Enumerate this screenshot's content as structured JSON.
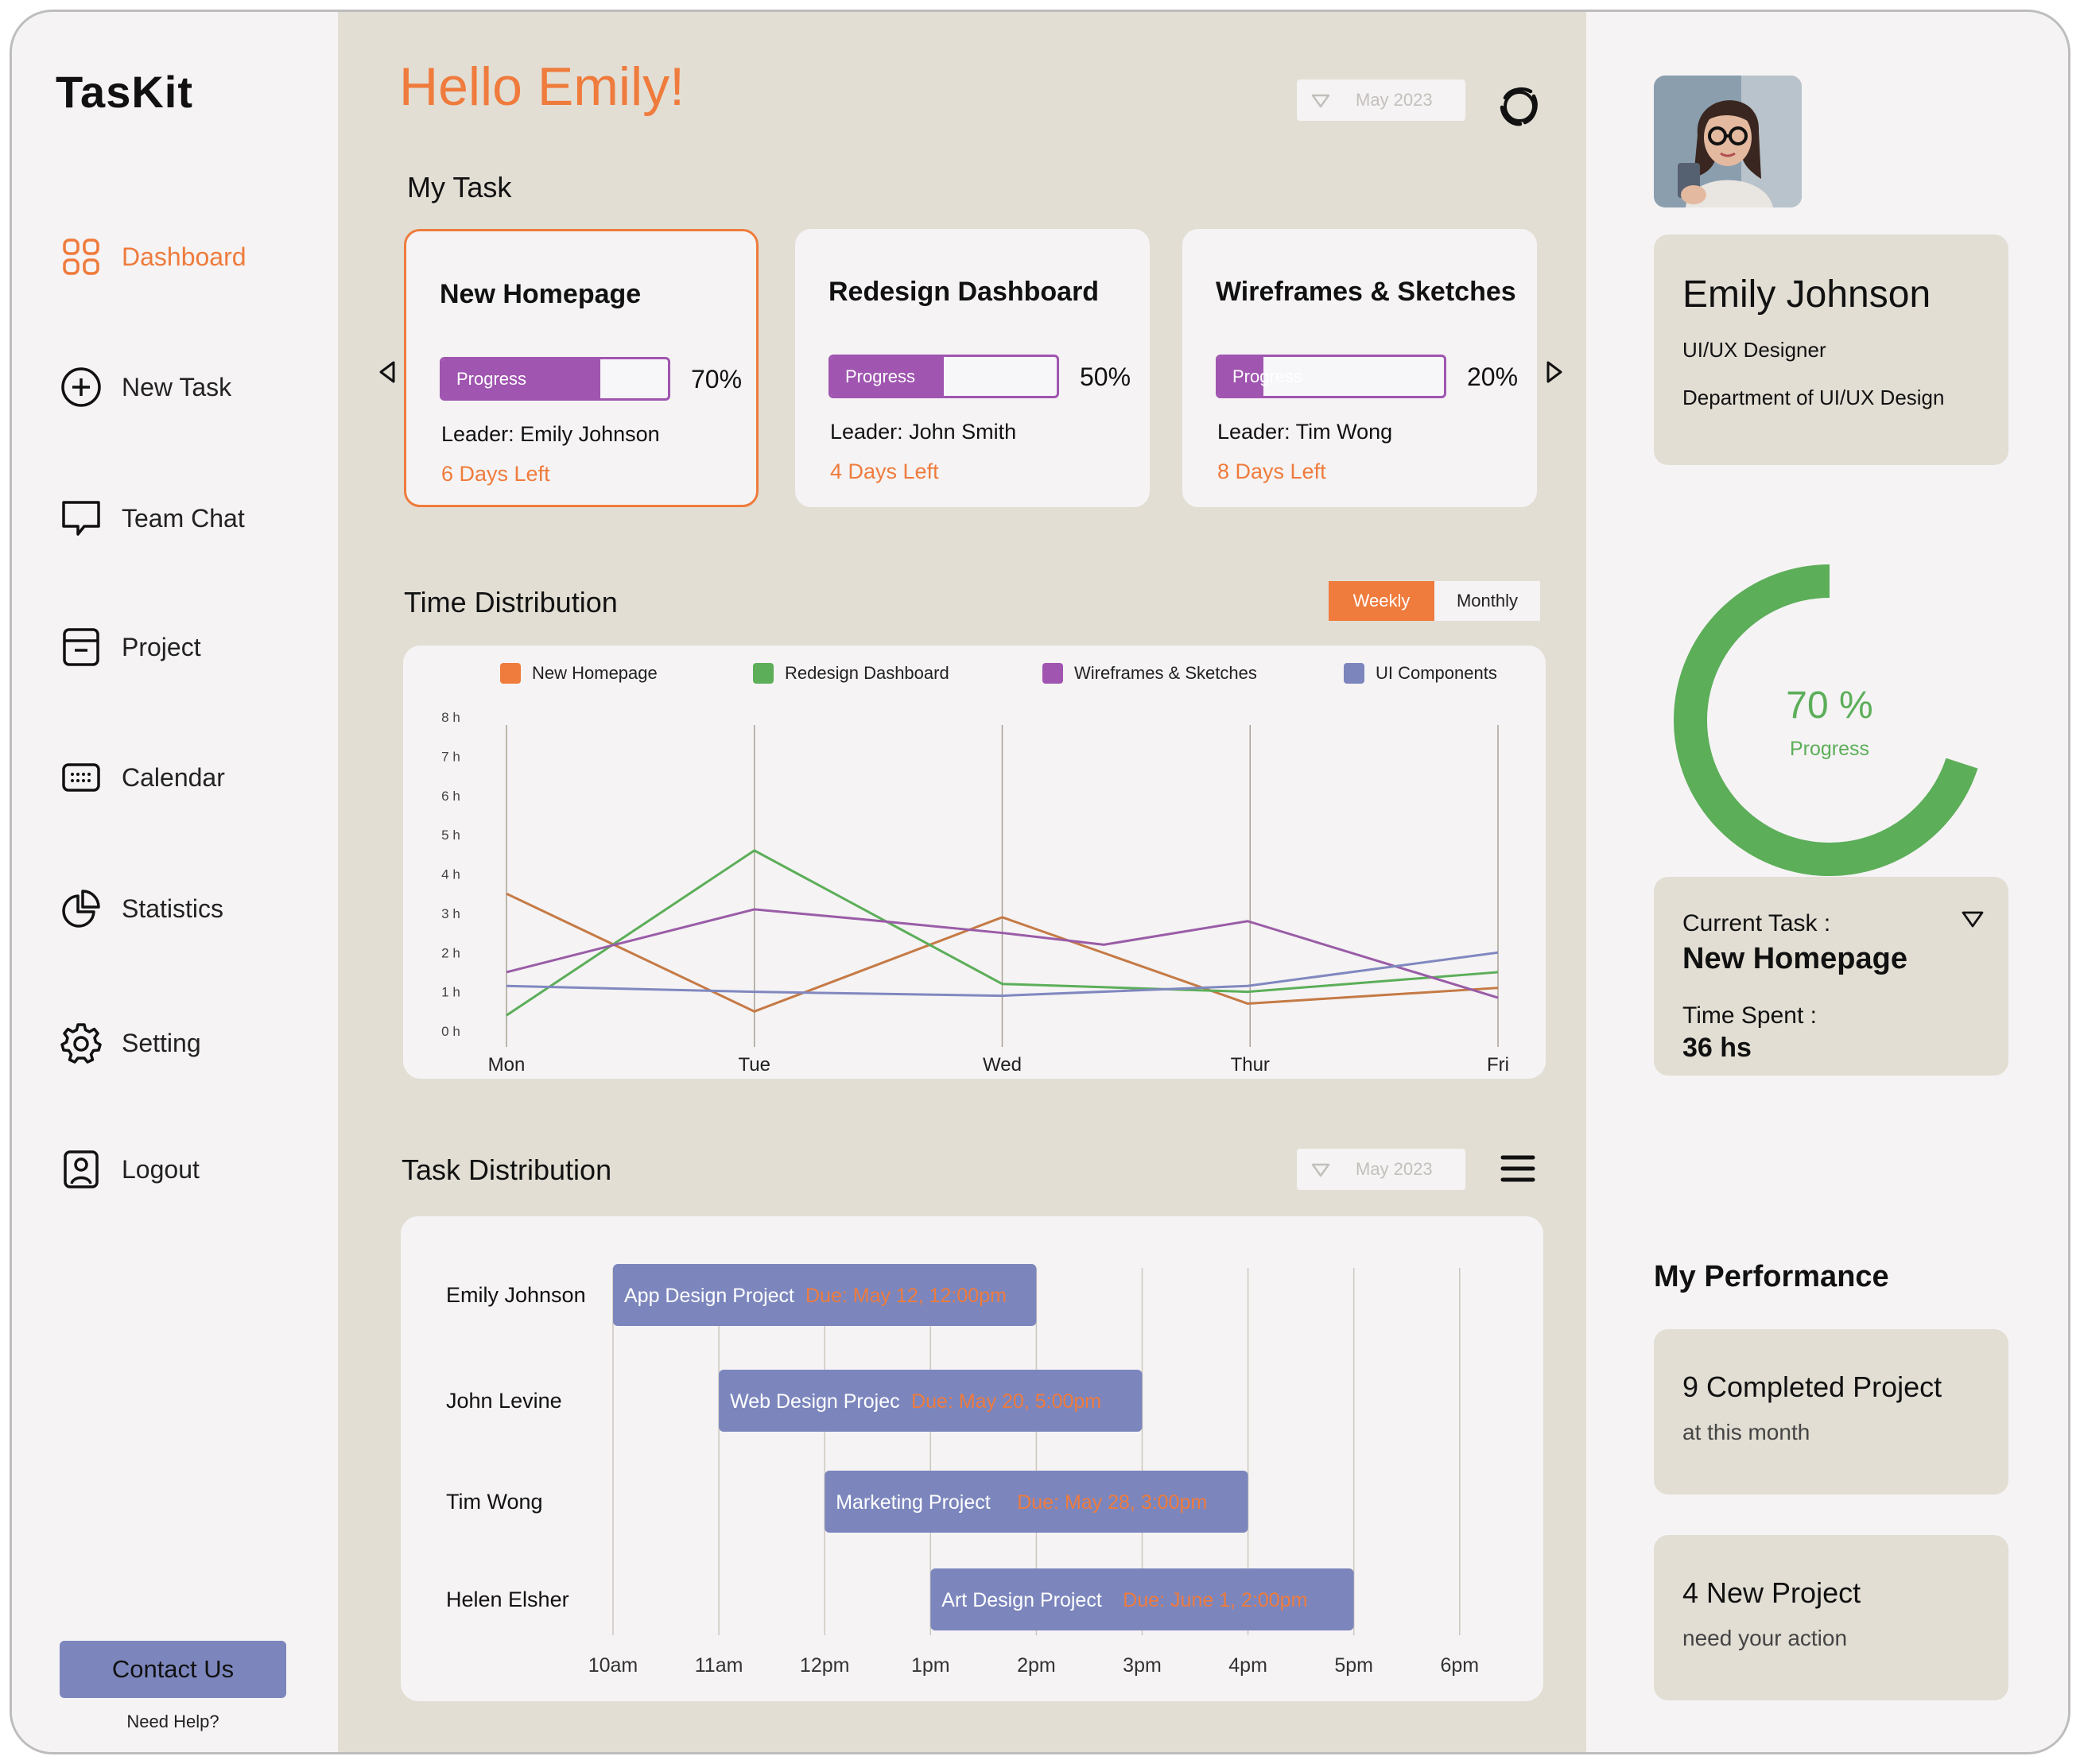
{
  "app": {
    "name": "TasKit"
  },
  "sidebar": {
    "items": [
      {
        "label": "Dashboard",
        "icon": "dashboard-grid-icon",
        "active": true
      },
      {
        "label": "New Task",
        "icon": "plus-circle-icon"
      },
      {
        "label": "Team Chat",
        "icon": "chat-bubble-icon"
      },
      {
        "label": "Project",
        "icon": "archive-box-icon"
      },
      {
        "label": "Calendar",
        "icon": "calendar-keyboard-icon"
      },
      {
        "label": "Statistics",
        "icon": "pie-chart-icon"
      },
      {
        "label": "Setting",
        "icon": "gear-icon"
      },
      {
        "label": "Logout",
        "icon": "user-badge-icon"
      }
    ],
    "contact_label": "Contact Us",
    "help_label": "Need Help?"
  },
  "header": {
    "greeting": "Hello Emily!",
    "date_filter": "May 2023"
  },
  "my_task": {
    "title": "My Task",
    "cards": [
      {
        "title": "New Homepage",
        "bar_label": "Progress",
        "progress": 0.7,
        "percent_text": "70%",
        "leader": "Leader: Emily Johnson",
        "days_left": "6 Days Left"
      },
      {
        "title": "Redesign Dashboard",
        "bar_label": "Progress",
        "progress": 0.5,
        "percent_text": "50%",
        "leader": "Leader: John Smith",
        "days_left": "4 Days Left"
      },
      {
        "title": "Wireframes & Sketches",
        "bar_label": "Progress",
        "progress": 0.2,
        "percent_text": "20%",
        "leader": "Leader: Tim Wong",
        "days_left": "8 Days Left"
      }
    ]
  },
  "time_distribution": {
    "title": "Time Distribution",
    "toggle": {
      "weekly": "Weekly",
      "monthly": "Monthly",
      "selected": "weekly"
    }
  },
  "task_distribution": {
    "title": "Task Distribution",
    "date_filter": "May 2023",
    "people": [
      "Emily Johnson",
      "John Levine",
      "Tim Wong",
      "Helen Elsher"
    ],
    "hours": [
      "10am",
      "11am",
      "12pm",
      "1pm",
      "2pm",
      "3pm",
      "4pm",
      "5pm",
      "6pm"
    ],
    "tasks": [
      {
        "row": 0,
        "name": "App Design Project",
        "due": "Due: May 12, 12:00pm",
        "start": 10,
        "end": 14
      },
      {
        "row": 1,
        "name": "Web Design Projec",
        "due": "Due: May 20, 5:00pm",
        "start": 11,
        "end": 15
      },
      {
        "row": 2,
        "name": "Marketing Project",
        "due": "Due: May 28, 3:00pm",
        "start": 12,
        "end": 16
      },
      {
        "row": 3,
        "name": "Art Design Project",
        "due": "Due: June 1, 2:00pm",
        "start": 13,
        "end": 17
      }
    ],
    "bar_color": "#7c86bd",
    "due_color": "#ef7b3c"
  },
  "profile": {
    "name": "Emily Johnson",
    "role": "UI/UX Designer",
    "department": "Department of UI/UX Design",
    "progress": 0.7,
    "progress_text": "70 %",
    "progress_label": "Progress",
    "current_task_label": "Current Task :",
    "current_task": "New Homepage",
    "time_spent_label": "Time Spent :",
    "time_spent": "36 hs"
  },
  "performance": {
    "title": "My Performance",
    "cards": [
      {
        "main": "9 Completed Project",
        "sub": "at this month"
      },
      {
        "main": "4 New Project",
        "sub": "need your action"
      }
    ]
  },
  "colors": {
    "accent": "#ef7b3c",
    "purple": "#a055b0",
    "green": "#5cae59",
    "blue": "#7c86bd",
    "beige": "#e2ded4"
  },
  "chart_data": {
    "type": "line",
    "title": "Time Distribution",
    "x": [
      "Mon",
      "Tue",
      "Wed",
      "Thur",
      "Fri"
    ],
    "y_ticks": [
      "0 h",
      "1 h",
      "2 h",
      "3 h",
      "4 h",
      "5 h",
      "6 h",
      "7 h",
      "8 h"
    ],
    "ylim": [
      0,
      8
    ],
    "legend_position": "top",
    "grid": "vertical",
    "series": [
      {
        "name": "New Homepage",
        "color": "#ef7b3c",
        "stroke": "#c57a45",
        "points": [
          [
            0,
            3.5
          ],
          [
            1,
            0.5
          ],
          [
            2,
            2.9
          ],
          [
            2.99,
            0.7
          ],
          [
            4,
            1.1
          ]
        ]
      },
      {
        "name": "Redesign Dashboard",
        "color": "#5cae59",
        "stroke": "#5cae59",
        "points": [
          [
            0,
            0.4
          ],
          [
            1,
            4.6
          ],
          [
            2,
            1.2
          ],
          [
            2.99,
            1.0
          ],
          [
            4,
            1.5
          ]
        ]
      },
      {
        "name": "Wireframes & Sketches",
        "color": "#a055b0",
        "stroke": "#9a5ca7",
        "points": [
          [
            0,
            1.5
          ],
          [
            1,
            3.1
          ],
          [
            1.43,
            2.85
          ],
          [
            2,
            2.5
          ],
          [
            2.41,
            2.2
          ],
          [
            2.99,
            2.8
          ],
          [
            4,
            0.85
          ]
        ]
      },
      {
        "name": "UI Components",
        "color": "#7c86bd",
        "stroke": "#8088bf",
        "points": [
          [
            0,
            1.15
          ],
          [
            1,
            1.0
          ],
          [
            2,
            0.9
          ],
          [
            2.99,
            1.15
          ],
          [
            4,
            2.0
          ]
        ]
      }
    ]
  }
}
